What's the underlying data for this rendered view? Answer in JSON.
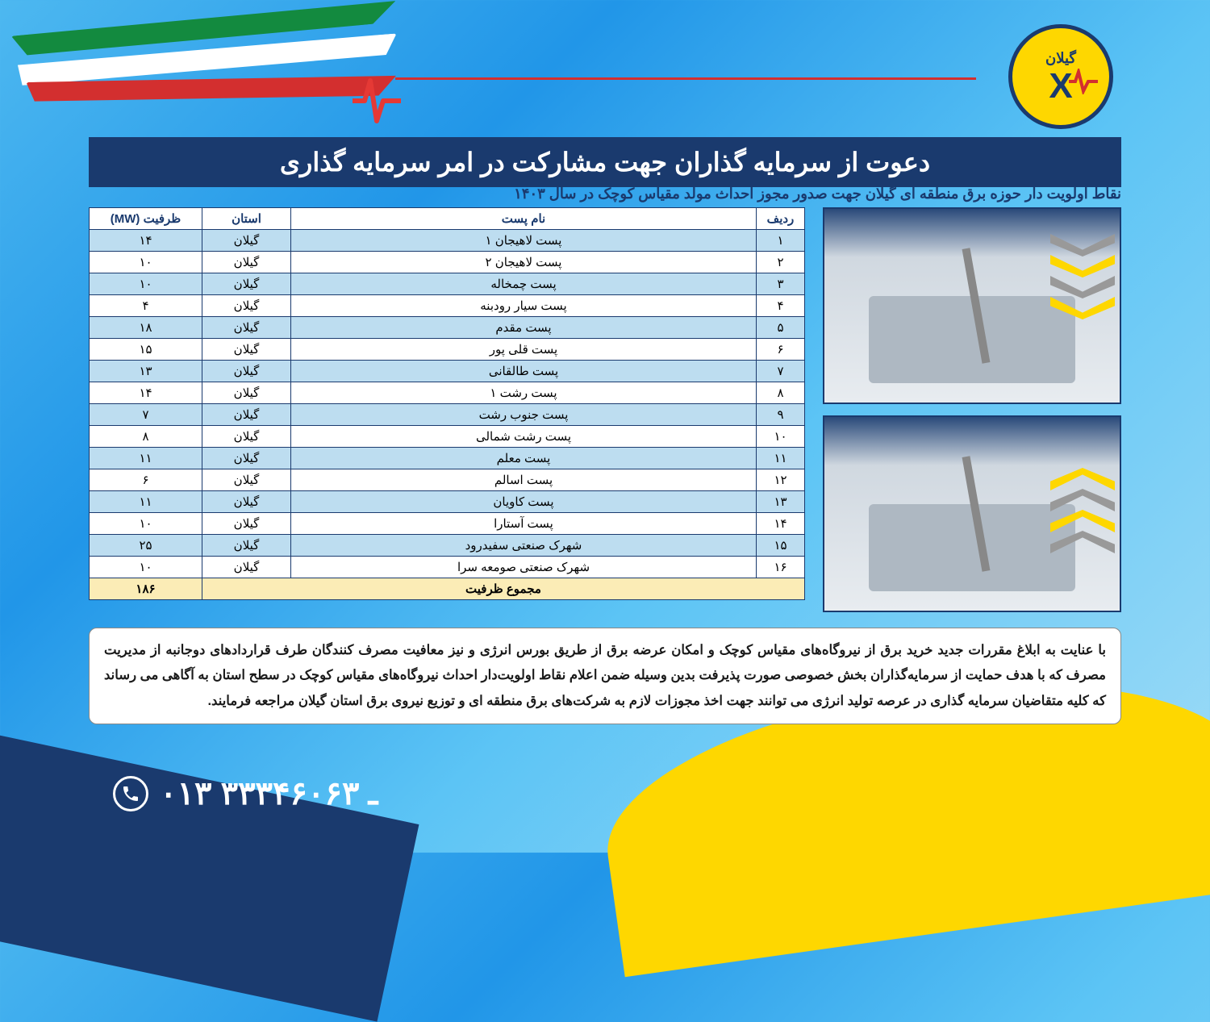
{
  "colors": {
    "bg_primary": "#2196e8",
    "bg_light": "#a0dcf7",
    "navy": "#1a3a6e",
    "yellow": "#fed700",
    "red": "#d32f2f",
    "green": "#138a3f",
    "white": "#ffffff",
    "row_odd": "#bdddf0",
    "row_even": "#ffffff",
    "row_total": "#fbecb6",
    "gray": "#999999"
  },
  "logo": {
    "region": "گیلان",
    "symbol": "X"
  },
  "title": "دعوت از سرمایه گذاران جهت مشارکت در امر سرمایه گذاری",
  "subtitle": "نقاط اولویت دار حوزه برق منطقه ای گیلان جهت صدور مجوز احداث مولد مقیاس کوچک در سال ۱۴۰۳",
  "table": {
    "headers": {
      "row": "ردیف",
      "name": "نام پست",
      "province": "استان",
      "capacity": "ظرفیت (MW)"
    },
    "rows": [
      {
        "n": "۱",
        "name": "پست لاهیجان ۱",
        "prov": "گیلان",
        "cap": "۱۴"
      },
      {
        "n": "۲",
        "name": "پست لاهیجان ۲",
        "prov": "گیلان",
        "cap": "۱۰"
      },
      {
        "n": "۳",
        "name": "پست چمخاله",
        "prov": "گیلان",
        "cap": "۱۰"
      },
      {
        "n": "۴",
        "name": "پست سیار رودبنه",
        "prov": "گیلان",
        "cap": "۴"
      },
      {
        "n": "۵",
        "name": "پست مقدم",
        "prov": "گیلان",
        "cap": "۱۸"
      },
      {
        "n": "۶",
        "name": "پست قلی پور",
        "prov": "گیلان",
        "cap": "۱۵"
      },
      {
        "n": "۷",
        "name": "پست طالقانی",
        "prov": "گیلان",
        "cap": "۱۳"
      },
      {
        "n": "۸",
        "name": "پست رشت ۱",
        "prov": "گیلان",
        "cap": "۱۴"
      },
      {
        "n": "۹",
        "name": "پست جنوب رشت",
        "prov": "گیلان",
        "cap": "۷"
      },
      {
        "n": "۱۰",
        "name": "پست رشت شمالی",
        "prov": "گیلان",
        "cap": "۸"
      },
      {
        "n": "۱۱",
        "name": "پست معلم",
        "prov": "گیلان",
        "cap": "۱۱"
      },
      {
        "n": "۱۲",
        "name": "پست اسالم",
        "prov": "گیلان",
        "cap": "۶"
      },
      {
        "n": "۱۳",
        "name": "پست کاویان",
        "prov": "گیلان",
        "cap": "۱۱"
      },
      {
        "n": "۱۴",
        "name": "پست آستارا",
        "prov": "گیلان",
        "cap": "۱۰"
      },
      {
        "n": "۱۵",
        "name": "شهرک صنعتی سفیدرود",
        "prov": "گیلان",
        "cap": "۲۵"
      },
      {
        "n": "۱۶",
        "name": "شهرک صنعتی صومعه سرا",
        "prov": "گیلان",
        "cap": "۱۰"
      }
    ],
    "total": {
      "label": "مجموع ظرفیت",
      "value": "۱۸۶"
    }
  },
  "description": "با عنایت به ابلاغ مقررات جدید خرید برق از نیروگاه‌های مقیاس کوچک و امکان عرضه برق از طریق بورس انرژی و نیز معافیت مصرف کنندگان طرف قراردادهای دوجانبه از مدیریت مصرف که با هدف حمایت از سرمایه‌گذاران بخش خصوصی صورت پذیرفت بدین وسیله ضمن اعلام نقاط اولویت‌دار احداث نیروگاه‌های مقیاس کوچک در سطح استان به آگاهی می رساند که کلیه متقاضیان سرمایه گذاری در عرصه تولید انرژی می توانند جهت اخذ مجوزات لازم به شرکت‌های برق منطقه ای و توزیع نیروی برق استان گیلان مراجعه فرمایند.",
  "phone": "۰۱۳ ـ ۳۳۳۴۶۰۶۳",
  "photos": {
    "alt1": "نیروگاه مقیاس کوچک - واحد ۱",
    "alt2": "نیروگاه مقیاس کوچک - واحد ۲"
  }
}
